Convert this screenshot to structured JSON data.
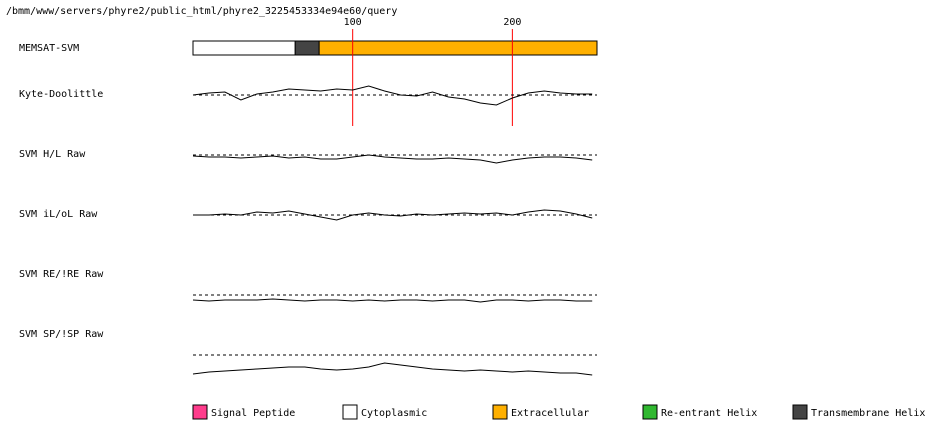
{
  "chart_data": {
    "type": "memsat",
    "title": "/bmm/www/servers/phyre2/public_html/phyre2_3225453334e94e60/query",
    "xlim": [
      0,
      253
    ],
    "xticks": [
      100,
      200
    ],
    "tick_color": "#ff0000",
    "topology_label": "MEMSAT-SVM",
    "segments": [
      {
        "start": 0,
        "end": 64,
        "color": "#ffffff"
      },
      {
        "start": 64,
        "end": 79,
        "color": "#444444"
      },
      {
        "start": 79,
        "end": 253,
        "color": "#ffb000"
      }
    ],
    "ylim": [
      -2,
      2
    ],
    "threshold": 0,
    "x": [
      0,
      10,
      20,
      30,
      40,
      50,
      60,
      70,
      80,
      90,
      100,
      110,
      120,
      130,
      140,
      150,
      160,
      170,
      180,
      190,
      200,
      210,
      220,
      230,
      240,
      250
    ],
    "series": [
      {
        "name": "Kyte-Doolittle",
        "values": [
          0,
          0.2,
          0.3,
          -0.5,
          0.1,
          0.3,
          0.6,
          0.5,
          0.4,
          0.6,
          0.5,
          0.9,
          0.4,
          0,
          -0.1,
          0.3,
          -0.2,
          -0.4,
          -0.8,
          -1,
          -0.3,
          0.2,
          0.4,
          0.2,
          0.1,
          0.1
        ]
      },
      {
        "name": "SVM H/L Raw",
        "values": [
          -0.1,
          -0.2,
          -0.2,
          -0.3,
          -0.2,
          -0.1,
          -0.3,
          -0.2,
          -0.4,
          -0.4,
          -0.2,
          0,
          -0.2,
          -0.3,
          -0.4,
          -0.4,
          -0.3,
          -0.4,
          -0.5,
          -0.8,
          -0.5,
          -0.3,
          -0.2,
          -0.2,
          -0.3,
          -0.5
        ]
      },
      {
        "name": "SVM iL/oL Raw",
        "values": [
          0,
          0,
          0.1,
          0,
          0.3,
          0.2,
          0.4,
          0.1,
          -0.2,
          -0.5,
          0,
          0.2,
          0,
          -0.1,
          0.1,
          0,
          0.1,
          0.2,
          0.1,
          0.2,
          0,
          0.3,
          0.5,
          0.4,
          0.1,
          -0.3
        ]
      },
      {
        "name": "SVM RE/!RE Raw",
        "values": [
          -0.5,
          -0.6,
          -0.5,
          -0.5,
          -0.5,
          -0.4,
          -0.5,
          -0.6,
          -0.5,
          -0.5,
          -0.6,
          -0.5,
          -0.6,
          -0.5,
          -0.5,
          -0.6,
          -0.5,
          -0.5,
          -0.7,
          -0.5,
          -0.5,
          -0.6,
          -0.5,
          -0.5,
          -0.6,
          -0.6
        ]
      },
      {
        "name": "SVM SP/!SP Raw",
        "values": [
          -1.9,
          -1.7,
          -1.6,
          -1.5,
          -1.4,
          -1.3,
          -1.2,
          -1.2,
          -1.4,
          -1.5,
          -1.4,
          -1.2,
          -0.8,
          -1.0,
          -1.2,
          -1.4,
          -1.5,
          -1.6,
          -1.5,
          -1.6,
          -1.7,
          -1.6,
          -1.7,
          -1.8,
          -1.8,
          -2
        ]
      }
    ],
    "legend": [
      {
        "name": "Signal Peptide",
        "color": "#ff3c8c"
      },
      {
        "name": "Cytoplasmic",
        "color": "#ffffff"
      },
      {
        "name": "Extracellular",
        "color": "#ffb000"
      },
      {
        "name": "Re-entrant Helix",
        "color": "#30b830"
      },
      {
        "name": "Transmembrane Helix",
        "color": "#444444"
      }
    ]
  }
}
